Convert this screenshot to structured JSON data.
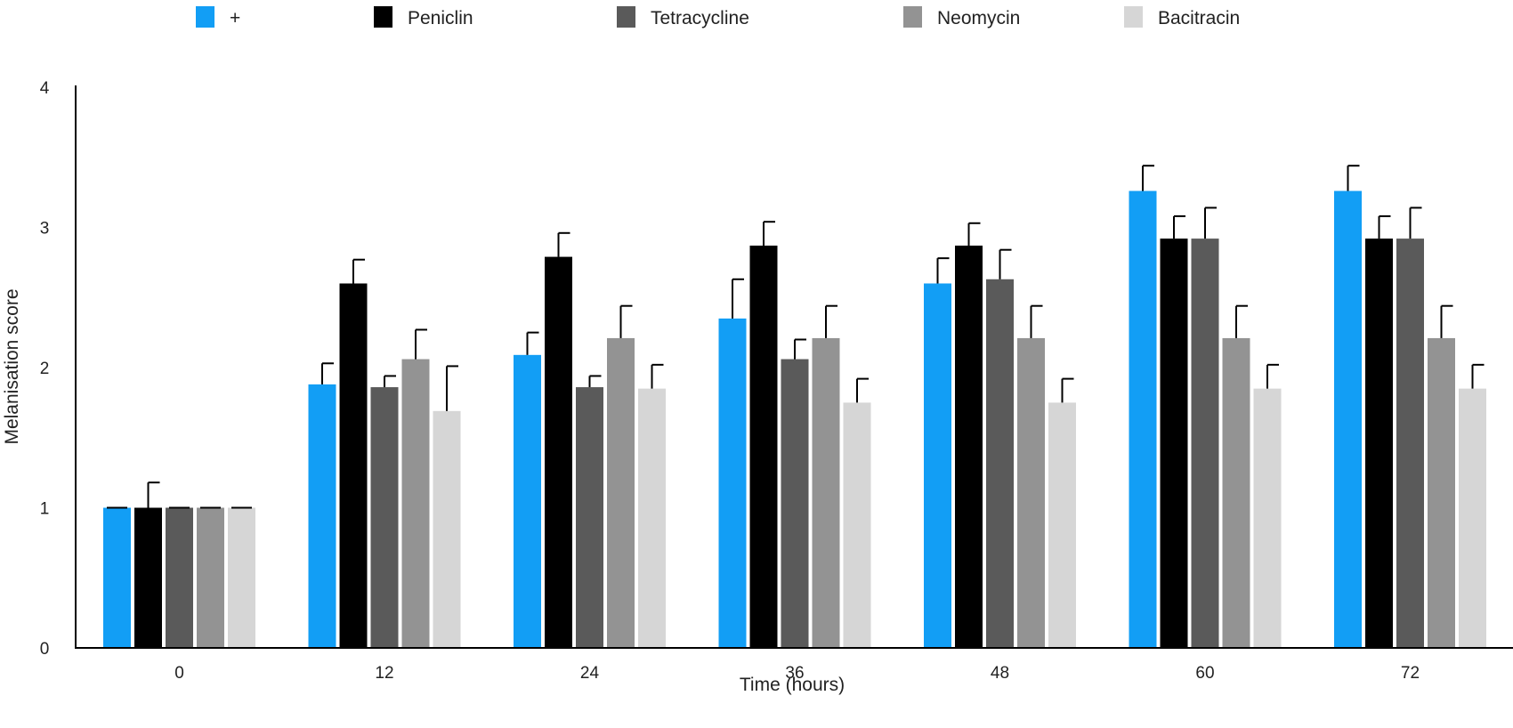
{
  "chart_data": {
    "type": "bar",
    "title": "",
    "xlabel": "Time (hours)",
    "ylabel": "Melanisation score",
    "ylim": [
      0,
      4
    ],
    "yticks": [
      0,
      1,
      2,
      3,
      4
    ],
    "grid": false,
    "legend_position": "top",
    "categories": [
      "0",
      "12",
      "24",
      "36",
      "48",
      "60",
      "72"
    ],
    "series": [
      {
        "name": "+",
        "color": "#129ef5",
        "values": [
          1.0,
          1.88,
          2.09,
          2.35,
          2.6,
          3.26,
          3.26
        ],
        "errors": [
          0.0,
          0.15,
          0.16,
          0.28,
          0.18,
          0.18,
          0.18
        ]
      },
      {
        "name": "Peniclin",
        "color": "#000000",
        "values": [
          1.0,
          2.6,
          2.79,
          2.87,
          2.87,
          2.92,
          2.92
        ],
        "errors": [
          0.18,
          0.17,
          0.17,
          0.17,
          0.16,
          0.16,
          0.16
        ]
      },
      {
        "name": "Tetracycline",
        "color": "#5a5a5a",
        "values": [
          1.0,
          1.86,
          1.86,
          2.06,
          2.63,
          2.92,
          2.92
        ],
        "errors": [
          0.0,
          0.08,
          0.08,
          0.14,
          0.21,
          0.22,
          0.22
        ]
      },
      {
        "name": "Neomycin",
        "color": "#939393",
        "values": [
          1.0,
          2.06,
          2.21,
          2.21,
          2.21,
          2.21,
          2.21
        ],
        "errors": [
          0.0,
          0.21,
          0.23,
          0.23,
          0.23,
          0.23,
          0.23
        ]
      },
      {
        "name": "Bacitracin",
        "color": "#d6d6d6",
        "values": [
          1.0,
          1.69,
          1.85,
          1.75,
          1.75,
          1.85,
          1.85
        ],
        "errors": [
          0.0,
          0.32,
          0.17,
          0.17,
          0.17,
          0.17,
          0.17
        ]
      }
    ]
  }
}
